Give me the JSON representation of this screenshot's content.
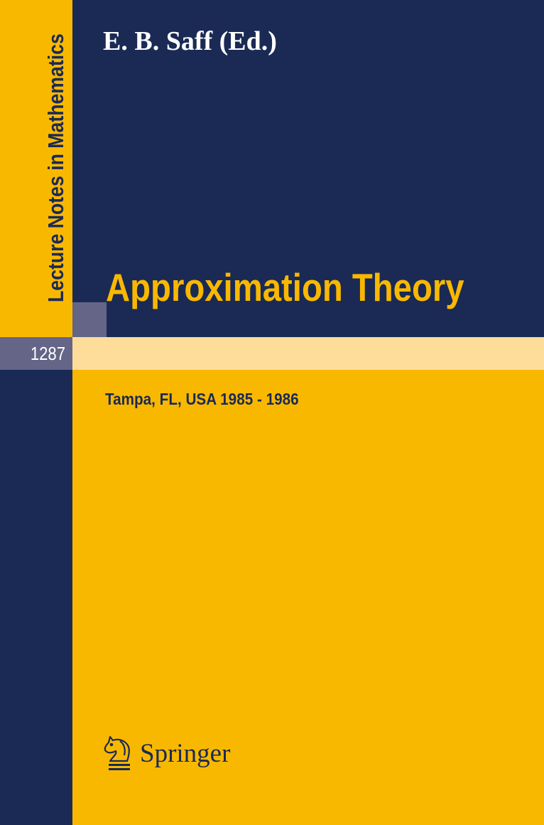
{
  "series": "Lecture Notes in Mathematics",
  "volume": "1287",
  "author": "E. B. Saff (Ed.)",
  "title": "Approximation Theory",
  "subtitle": "Tampa, FL, USA 1985 - 1986",
  "publisher": "Springer",
  "colors": {
    "navy": "#1a2a55",
    "yellow": "#f9b800",
    "gray": "#646587",
    "light_band": "#fedd9a"
  }
}
